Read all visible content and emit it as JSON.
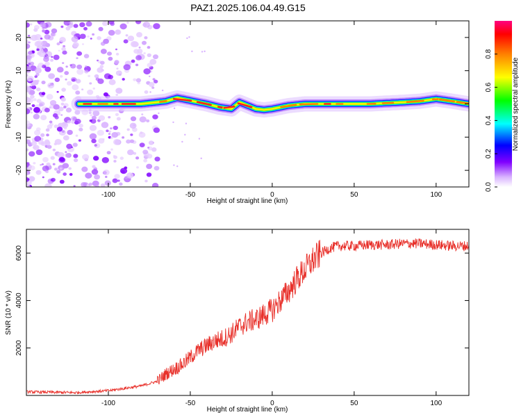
{
  "figure": {
    "title": "PAZ1.2025.106.04.49.G15"
  },
  "chart_data": [
    {
      "type": "heatmap",
      "title": "PAZ1.2025.106.04.49.G15",
      "xlabel": "Height of straight line (km)",
      "ylabel": "Frequency (Hz)",
      "xlim": [
        -150,
        120
      ],
      "ylim": [
        -25,
        25
      ],
      "x_ticks": [
        -100,
        -50,
        0,
        50,
        100
      ],
      "y_ticks": [
        -20,
        -10,
        0,
        10,
        20
      ],
      "grid": false,
      "signal_track": {
        "x": [
          -118,
          -100,
          -80,
          -65,
          -58,
          -50,
          -40,
          -32,
          -25,
          -20,
          -15,
          -10,
          -5,
          0,
          10,
          20,
          40,
          60,
          80,
          90,
          100,
          110,
          120
        ],
        "y": [
          0,
          0,
          0,
          0.8,
          1.8,
          1.0,
          0,
          -1.0,
          -1.5,
          0.5,
          -0.5,
          -1.5,
          -1.8,
          -1.5,
          -0.5,
          0,
          0,
          0,
          0.5,
          0.8,
          1.5,
          0.8,
          0
        ]
      },
      "noise_region_x": [
        -150,
        -80
      ],
      "colorbar": {
        "label": "Normalized spectral amplitude",
        "range": [
          0,
          1
        ],
        "ticks": [
          "0.0",
          "0.2",
          "0.4",
          "0.6",
          "0.8"
        ],
        "tick_values": [
          0,
          0.2,
          0.4,
          0.6,
          0.8
        ]
      }
    },
    {
      "type": "line",
      "xlabel": "Height of straight line (km)",
      "ylabel": "SNR (10 * v/v)",
      "xlim": [
        -150,
        120
      ],
      "ylim": [
        0,
        7000
      ],
      "x_ticks": [
        -100,
        -50,
        0,
        50,
        100
      ],
      "y_ticks": [
        2000,
        4000,
        6000
      ],
      "grid": false,
      "color": "#e8302a",
      "series": [
        {
          "x": [
            -150,
            -120,
            -100,
            -90,
            -80,
            -75,
            -70,
            -65,
            -60,
            -55,
            -50,
            -45,
            -40,
            -35,
            -30,
            -25,
            -20,
            -15,
            -10,
            -5,
            0,
            5,
            10,
            15,
            20,
            25,
            30,
            35,
            40,
            50,
            60,
            70,
            80,
            90,
            100,
            110,
            120
          ],
          "values": [
            150,
            120,
            200,
            300,
            400,
            500,
            600,
            900,
            1100,
            1300,
            1600,
            1900,
            2100,
            2300,
            2400,
            2600,
            2900,
            3100,
            3200,
            3400,
            3600,
            4000,
            4400,
            4900,
            5300,
            5700,
            6000,
            6200,
            6300,
            6300,
            6350,
            6350,
            6400,
            6400,
            6350,
            6300,
            6300
          ]
        }
      ]
    }
  ]
}
